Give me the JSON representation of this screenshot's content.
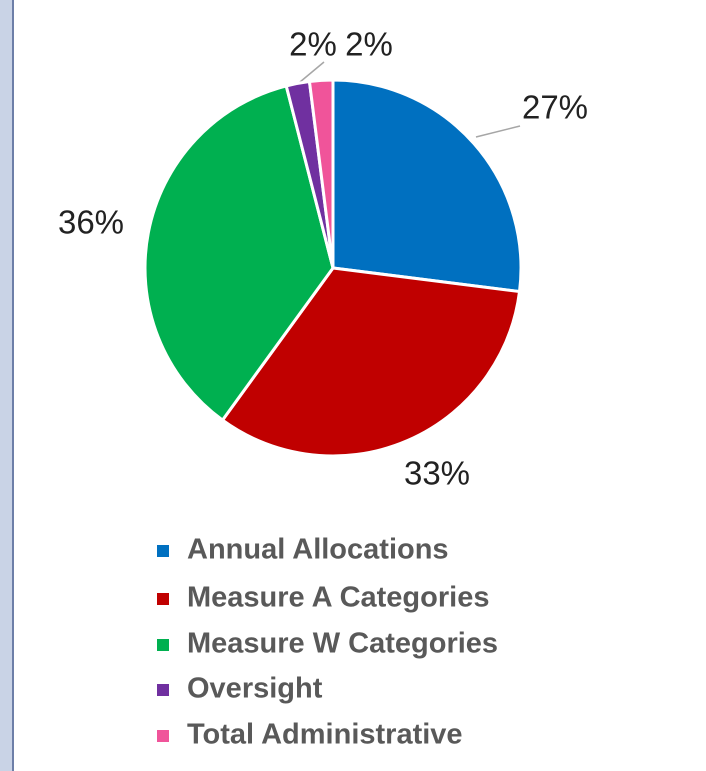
{
  "chart_data": {
    "type": "pie",
    "categories": [
      "Annual Allocations",
      "Measure A Categories",
      "Measure W Categories",
      "Oversight",
      "Total Administrative"
    ],
    "values": [
      27,
      33,
      36,
      2,
      2
    ],
    "value_labels": [
      "27%",
      "33%",
      "36%",
      "2%",
      "2%"
    ],
    "colors": [
      "#0070c0",
      "#c00000",
      "#00b050",
      "#7030a0",
      "#f0549a"
    ],
    "legend": "bottom"
  }
}
